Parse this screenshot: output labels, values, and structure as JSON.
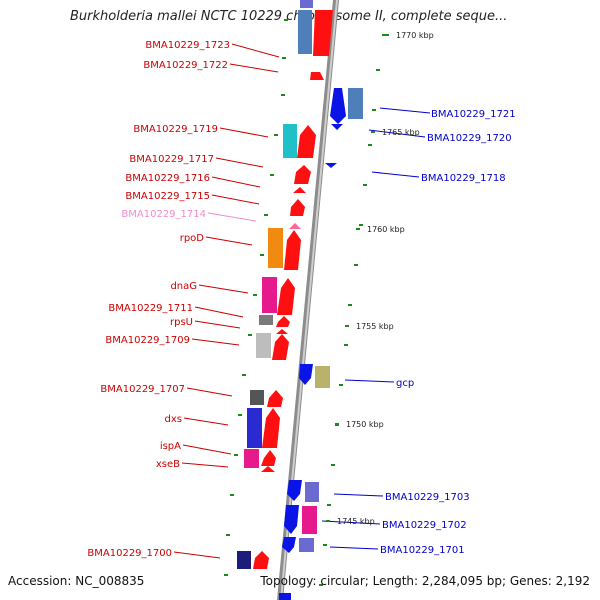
{
  "title": "Burkholderia mallei NCTC 10229 chromosome II, complete seque...",
  "footer": {
    "accession": "Accession: NC_008835",
    "summary": "Topology: circular; Length: 2,284,095 bp; Genes: 2,192"
  },
  "colors": {
    "left_label": "#cc0000",
    "right_label": "#0000cc",
    "faded_label": "#f08cc8",
    "forward_gene": "#ff1010",
    "reverse_gene": "#0a14e6",
    "tick": "#1a8a1a",
    "backbone": "#8c8c8c"
  },
  "kbp_ticks": [
    "1770 kbp",
    "1765 kbp",
    "1760 kbp",
    "1755 kbp",
    "1750 kbp",
    "1745 kbp"
  ],
  "left_genes": [
    {
      "label": "BMA10229_1723",
      "faded": false
    },
    {
      "label": "BMA10229_1722",
      "faded": false
    },
    {
      "label": "BMA10229_1719",
      "faded": false
    },
    {
      "label": "BMA10229_1717",
      "faded": false
    },
    {
      "label": "BMA10229_1716",
      "faded": false
    },
    {
      "label": "BMA10229_1715",
      "faded": false
    },
    {
      "label": "BMA10229_1714",
      "faded": true
    },
    {
      "label": "rpoD",
      "faded": false
    },
    {
      "label": "dnaG",
      "faded": false
    },
    {
      "label": "BMA10229_1711",
      "faded": false
    },
    {
      "label": "rpsU",
      "faded": false
    },
    {
      "label": "BMA10229_1709",
      "faded": false
    },
    {
      "label": "BMA10229_1707",
      "faded": false
    },
    {
      "label": "dxs",
      "faded": false
    },
    {
      "label": "ispA",
      "faded": false
    },
    {
      "label": "xseB",
      "faded": false
    },
    {
      "label": "BMA10229_1700",
      "faded": false
    }
  ],
  "right_genes": [
    {
      "label": "BMA10229_1721"
    },
    {
      "label": "BMA10229_1720"
    },
    {
      "label": "BMA10229_1718"
    },
    {
      "label": "gcp"
    },
    {
      "label": "BMA10229_1703"
    },
    {
      "label": "BMA10229_1702"
    },
    {
      "label": "BMA10229_1701"
    }
  ]
}
